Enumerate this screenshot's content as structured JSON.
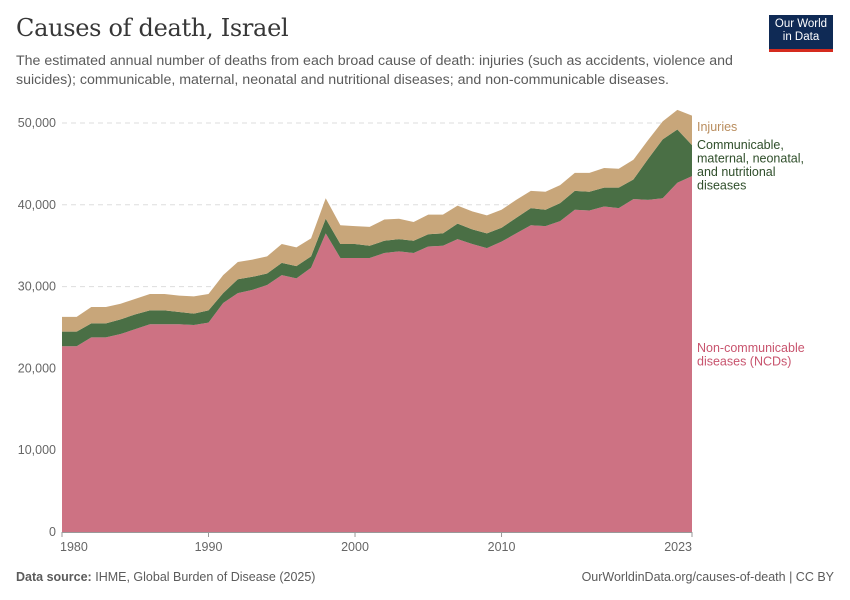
{
  "header": {
    "title": "Causes of death, Israel",
    "subtitle": "The estimated annual number of deaths from each broad cause of death: injuries (such as accidents, violence and suicides); communicable, maternal, neonatal and nutritional diseases; and non-communicable diseases.",
    "logo_line1": "Our World",
    "logo_line2": "in Data"
  },
  "footer": {
    "source_label": "Data source:",
    "source_text": "IHME, Global Burden of Disease (2025)",
    "url_license": "OurWorldinData.org/causes-of-death | CC BY"
  },
  "colors": {
    "ncd": "#CD7283",
    "communicable": "#4A6F45",
    "injuries": "#C8A67A",
    "ncd_label": "#C8546E",
    "communicable_label": "#2F4E2A",
    "injuries_label": "#B98D5E",
    "logo_bg": "#0F2A55",
    "logo_accent": "#D52B1E"
  },
  "chart_data": {
    "type": "area",
    "stacked": true,
    "title": "Causes of death, Israel",
    "xlabel": "",
    "ylabel": "",
    "x": [
      1980,
      1981,
      1982,
      1983,
      1984,
      1985,
      1986,
      1987,
      1988,
      1989,
      1990,
      1991,
      1992,
      1993,
      1994,
      1995,
      1996,
      1997,
      1998,
      1999,
      2000,
      2001,
      2002,
      2003,
      2004,
      2005,
      2006,
      2007,
      2008,
      2009,
      2010,
      2011,
      2012,
      2013,
      2014,
      2015,
      2016,
      2017,
      2018,
      2019,
      2020,
      2021,
      2022,
      2023
    ],
    "xlim": [
      1980,
      2023
    ],
    "ylim": [
      0,
      50000
    ],
    "x_ticks": [
      "1980",
      "1990",
      "2000",
      "2010",
      "2023"
    ],
    "x_tick_values": [
      1980,
      1990,
      2000,
      2010,
      2023
    ],
    "y_ticks": [
      "0",
      "10,000",
      "20,000",
      "30,000",
      "40,000",
      "50,000"
    ],
    "y_tick_values": [
      0,
      10000,
      20000,
      30000,
      40000,
      50000
    ],
    "grid": "horizontal-dashed",
    "legend_placement": "right (inline labels)",
    "series": [
      {
        "name": "Non-communicable diseases (NCDs)",
        "label_lines": [
          "Non-communicable",
          "diseases (NCDs)"
        ],
        "values": [
          22700,
          22700,
          23800,
          23800,
          24200,
          24800,
          25400,
          25400,
          25400,
          25300,
          25600,
          28000,
          29200,
          29600,
          30200,
          31400,
          31000,
          32300,
          36500,
          33500,
          33500,
          33500,
          34100,
          34300,
          34100,
          34900,
          35000,
          35800,
          35200,
          34700,
          35500,
          36500,
          37500,
          37400,
          38000,
          39400,
          39300,
          39800,
          39600,
          40700,
          40600,
          40800,
          42700,
          43500
        ]
      },
      {
        "name": "Communicable, maternal, neonatal, and nutritional diseases",
        "label_lines": [
          "Communicable,",
          "maternal, neonatal,",
          "and nutritional",
          "diseases"
        ],
        "values": [
          1800,
          1800,
          1700,
          1700,
          1800,
          1800,
          1700,
          1700,
          1500,
          1400,
          1500,
          1200,
          1700,
          1600,
          1400,
          1500,
          1500,
          1400,
          1800,
          1700,
          1700,
          1500,
          1500,
          1500,
          1500,
          1500,
          1500,
          1900,
          1800,
          1800,
          1700,
          1900,
          2100,
          2000,
          2200,
          2300,
          2300,
          2300,
          2500,
          2400,
          5000,
          7200,
          6500,
          3800
        ]
      },
      {
        "name": "Injuries",
        "label_lines": [
          "Injuries"
        ],
        "values": [
          1800,
          1800,
          2000,
          2000,
          1900,
          1900,
          2000,
          2000,
          2000,
          2100,
          2000,
          2200,
          2100,
          2100,
          2100,
          2300,
          2300,
          2200,
          2500,
          2300,
          2200,
          2300,
          2600,
          2500,
          2300,
          2400,
          2300,
          2200,
          2200,
          2200,
          2200,
          2200,
          2100,
          2200,
          2200,
          2200,
          2300,
          2400,
          2300,
          2400,
          2300,
          2200,
          2400,
          3600
        ]
      }
    ]
  }
}
